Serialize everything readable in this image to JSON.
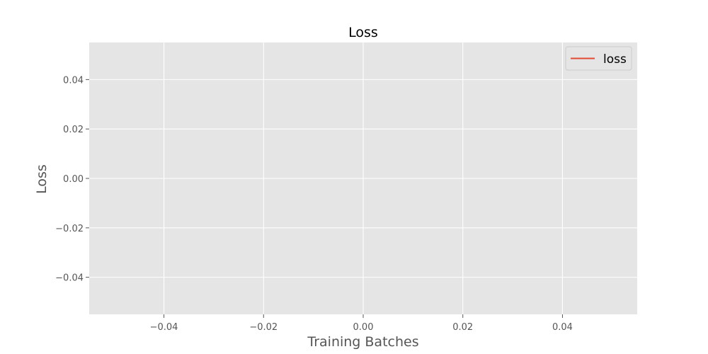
{
  "chart_data": {
    "type": "line",
    "title": "Loss",
    "xlabel": "Training Batches",
    "ylabel": "Loss",
    "xlim": [
      -0.055,
      0.055
    ],
    "ylim": [
      -0.055,
      0.055
    ],
    "x_ticks": [
      -0.04,
      -0.02,
      0.0,
      0.02,
      0.04
    ],
    "y_ticks": [
      -0.04,
      -0.02,
      0.0,
      0.02,
      0.04
    ],
    "x_tick_labels": [
      "−0.04",
      "−0.02",
      "0.00",
      "0.02",
      "0.04"
    ],
    "y_tick_labels": [
      "−0.04",
      "−0.02",
      "0.00",
      "0.02",
      "0.04"
    ],
    "grid": true,
    "legend_position": "top-right",
    "series": [
      {
        "name": "loss",
        "color": "#E24A33",
        "x": [],
        "y": []
      }
    ],
    "plot_background": "#E5E5E5",
    "grid_color": "#FFFFFF"
  }
}
